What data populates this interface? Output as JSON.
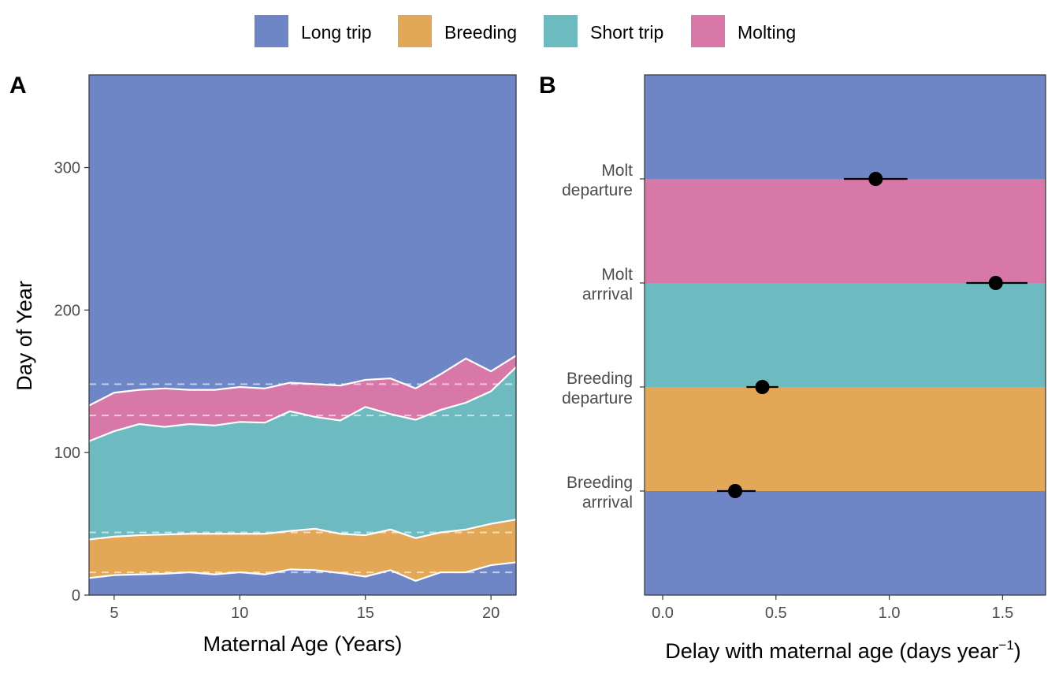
{
  "legend": {
    "items": [
      {
        "label": "Long trip",
        "color": "#6F86C6"
      },
      {
        "label": "Breeding",
        "color": "#E2A857"
      },
      {
        "label": "Short trip",
        "color": "#6DBAC0"
      },
      {
        "label": "Molting",
        "color": "#D778A9"
      }
    ]
  },
  "panels": {
    "a_tag": "A",
    "b_tag": "B"
  },
  "chart_data": [
    {
      "type": "area",
      "panel": "A",
      "xlabel": "Maternal Age (Years)",
      "ylabel": "Day of Year",
      "xlim": [
        4,
        21
      ],
      "ylim": [
        0,
        365
      ],
      "xticks": [
        5,
        10,
        15,
        20
      ],
      "yticks": [
        0,
        100,
        200,
        300
      ],
      "grid": false,
      "x": [
        4,
        5,
        6,
        7,
        8,
        9,
        10,
        11,
        12,
        13,
        14,
        15,
        16,
        17,
        18,
        19,
        20,
        21
      ],
      "boundaries": [
        {
          "name": "Breeding arrival",
          "values": [
            12,
            14,
            14.5,
            15,
            16,
            14.5,
            16,
            14.5,
            18,
            17.5,
            15.5,
            13,
            17.5,
            10,
            16,
            16,
            21,
            23
          ]
        },
        {
          "name": "Breeding departure",
          "values": [
            39,
            41,
            42,
            42.5,
            43,
            43,
            43,
            43,
            45,
            46.5,
            43,
            42,
            46,
            40,
            44,
            46,
            50,
            53
          ]
        },
        {
          "name": "Molt arrival",
          "values": [
            108,
            115,
            120,
            118,
            120,
            119,
            121.5,
            121,
            129,
            125,
            122.5,
            132,
            127,
            123,
            130,
            135,
            143,
            160
          ]
        },
        {
          "name": "Molt departure",
          "values": [
            133,
            142,
            144,
            145,
            144,
            144,
            146,
            145,
            149,
            148,
            147,
            151,
            152,
            145,
            155,
            166,
            157,
            168
          ]
        }
      ],
      "reference_lines": [
        16,
        44,
        126,
        148
      ],
      "bands": [
        {
          "legend": "Long trip",
          "from": "bottom",
          "to": "Breeding arrival"
        },
        {
          "legend": "Breeding",
          "from": "Breeding arrival",
          "to": "Breeding departure"
        },
        {
          "legend": "Short trip",
          "from": "Breeding departure",
          "to": "Molt arrival"
        },
        {
          "legend": "Molting",
          "from": "Molt arrival",
          "to": "Molt departure"
        },
        {
          "legend": "Long trip",
          "from": "Molt departure",
          "to": "top"
        }
      ]
    },
    {
      "type": "scatter",
      "panel": "B",
      "xlabel": "Delay with maternal age (days year",
      "xlabel_sup": "−1",
      "xlabel_tail": ")",
      "xlim": [
        -0.08,
        1.69
      ],
      "xticks": [
        0.0,
        0.5,
        1.0,
        1.5
      ],
      "xtick_labels": [
        "0.0",
        "0.5",
        "1.0",
        "1.5"
      ],
      "grid": false,
      "categories": [
        {
          "lines": [
            "Breeding",
            "arrrival"
          ],
          "value": 0.32,
          "low": 0.24,
          "high": 0.41
        },
        {
          "lines": [
            "Breeding",
            "departure"
          ],
          "value": 0.44,
          "low": 0.37,
          "high": 0.51
        },
        {
          "lines": [
            "Molt",
            "arrrival"
          ],
          "value": 1.47,
          "low": 1.34,
          "high": 1.61
        },
        {
          "lines": [
            "Molt",
            "departure"
          ],
          "value": 0.94,
          "low": 0.8,
          "high": 1.08
        }
      ],
      "bands": [
        "Long trip",
        "Breeding",
        "Short trip",
        "Molting",
        "Long trip"
      ]
    }
  ]
}
